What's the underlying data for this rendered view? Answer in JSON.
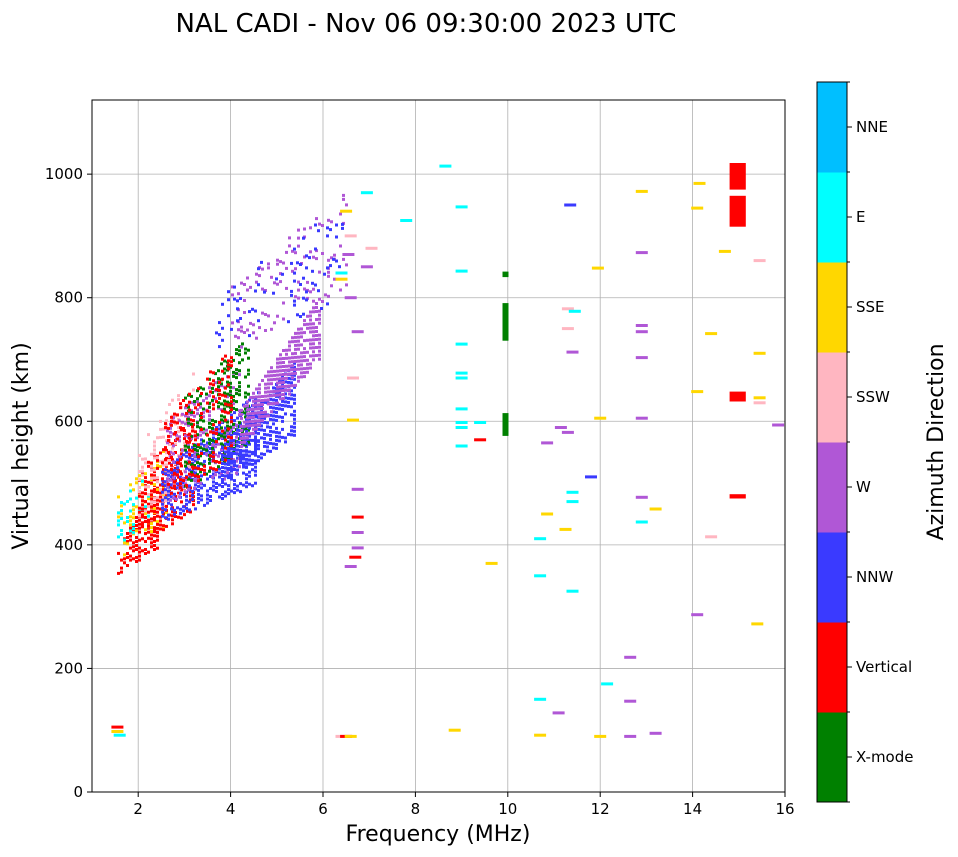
{
  "chart_data": {
    "type": "scatter",
    "title": "NAL CADI - Nov 06 09:30:00 2023 UTC",
    "xlabel": "Frequency (MHz)",
    "ylabel": "Virtual height (km)",
    "xlim": [
      1,
      16
    ],
    "ylim": [
      0,
      1120
    ],
    "xticks": [
      2,
      4,
      6,
      8,
      10,
      12,
      14,
      16
    ],
    "yticks": [
      0,
      200,
      400,
      600,
      800,
      1000
    ],
    "grid": true,
    "colorbar": {
      "label": "Azimuth Direction",
      "categories": [
        {
          "name": "X-mode",
          "color": "#008000"
        },
        {
          "name": "Vertical",
          "color": "#ff0000"
        },
        {
          "name": "NNW",
          "color": "#3a3aff"
        },
        {
          "name": "W",
          "color": "#b057d6"
        },
        {
          "name": "SSW",
          "color": "#ffb6c1"
        },
        {
          "name": "SSE",
          "color": "#ffd700"
        },
        {
          "name": "E",
          "color": "#00ffff"
        },
        {
          "name": "NNE",
          "color": "#00bfff"
        }
      ]
    },
    "trace_bands": [
      {
        "direction": "Vertical",
        "f_start": 1.55,
        "f_end": 2.4,
        "h_low_start": 355,
        "h_low_end": 395,
        "h_high_start": 395,
        "h_high_end": 510,
        "density": 0.6
      },
      {
        "direction": "SSE",
        "f_start": 1.55,
        "f_end": 2.6,
        "h_low_start": 380,
        "h_low_end": 430,
        "h_high_start": 480,
        "h_high_end": 560,
        "density": 0.25
      },
      {
        "direction": "E",
        "f_start": 1.55,
        "f_end": 2.2,
        "h_low_start": 395,
        "h_low_end": 440,
        "h_high_start": 480,
        "h_high_end": 520,
        "density": 0.25
      },
      {
        "direction": "Vertical",
        "f_start": 2.0,
        "f_end": 3.2,
        "h_low_start": 400,
        "h_low_end": 460,
        "h_high_start": 520,
        "h_high_end": 620,
        "density": 0.45
      },
      {
        "direction": "SSW",
        "f_start": 2.0,
        "f_end": 3.2,
        "h_low_start": 440,
        "h_low_end": 500,
        "h_high_start": 560,
        "h_high_end": 690,
        "density": 0.25
      },
      {
        "direction": "NNW",
        "f_start": 2.5,
        "f_end": 4.6,
        "h_low_start": 440,
        "h_low_end": 500,
        "h_high_start": 520,
        "h_high_end": 650,
        "density": 0.55
      },
      {
        "direction": "W",
        "f_start": 2.6,
        "f_end": 4.2,
        "h_low_start": 470,
        "h_low_end": 520,
        "h_high_start": 600,
        "h_high_end": 700,
        "density": 0.3
      },
      {
        "direction": "X-mode",
        "f_start": 3.0,
        "f_end": 4.4,
        "h_low_start": 490,
        "h_low_end": 560,
        "h_high_start": 640,
        "h_high_end": 740,
        "density": 0.35
      },
      {
        "direction": "Vertical",
        "f_start": 2.5,
        "f_end": 4.0,
        "h_low_start": 470,
        "h_low_end": 540,
        "h_high_start": 600,
        "h_high_end": 720,
        "density": 0.25
      },
      {
        "direction": "NNW",
        "f_start": 3.8,
        "f_end": 5.4,
        "h_low_start": 500,
        "h_low_end": 580,
        "h_high_start": 560,
        "h_high_end": 700,
        "density": 0.7
      },
      {
        "direction": "W",
        "f_start": 4.2,
        "f_end": 5.9,
        "h_low_start": 560,
        "h_low_end": 700,
        "h_high_start": 620,
        "h_high_end": 800,
        "density": 0.75
      },
      {
        "direction": "W",
        "f_start": 4.0,
        "f_end": 6.5,
        "h_low_start": 700,
        "h_low_end": 820,
        "h_high_start": 820,
        "h_high_end": 980,
        "density": 0.12
      },
      {
        "direction": "NNW",
        "f_start": 3.6,
        "f_end": 6.4,
        "h_low_start": 720,
        "h_low_end": 790,
        "h_high_start": 800,
        "h_high_end": 960,
        "density": 0.08
      }
    ],
    "isolated_points": [
      {
        "f": 1.55,
        "h": 105,
        "direction": "Vertical"
      },
      {
        "f": 1.55,
        "h": 98,
        "direction": "SSE"
      },
      {
        "f": 1.6,
        "h": 92,
        "direction": "E"
      },
      {
        "f": 6.4,
        "h": 90,
        "direction": "SSW"
      },
      {
        "f": 6.5,
        "h": 90,
        "direction": "Vertical"
      },
      {
        "f": 6.6,
        "h": 90,
        "direction": "SSE"
      },
      {
        "f": 6.6,
        "h": 365,
        "direction": "W"
      },
      {
        "f": 6.7,
        "h": 380,
        "direction": "Vertical"
      },
      {
        "f": 6.75,
        "h": 395,
        "direction": "W"
      },
      {
        "f": 6.75,
        "h": 420,
        "direction": "W"
      },
      {
        "f": 6.75,
        "h": 445,
        "direction": "Vertical"
      },
      {
        "f": 6.75,
        "h": 490,
        "direction": "W"
      },
      {
        "f": 6.65,
        "h": 602,
        "direction": "SSE"
      },
      {
        "f": 6.65,
        "h": 670,
        "direction": "SSW"
      },
      {
        "f": 6.75,
        "h": 745,
        "direction": "W"
      },
      {
        "f": 6.6,
        "h": 800,
        "direction": "W"
      },
      {
        "f": 6.4,
        "h": 830,
        "direction": "SSE"
      },
      {
        "f": 6.4,
        "h": 840,
        "direction": "E"
      },
      {
        "f": 6.55,
        "h": 870,
        "direction": "W"
      },
      {
        "f": 6.6,
        "h": 900,
        "direction": "SSW"
      },
      {
        "f": 6.5,
        "h": 940,
        "direction": "SSE"
      },
      {
        "f": 6.95,
        "h": 970,
        "direction": "E"
      },
      {
        "f": 6.95,
        "h": 850,
        "direction": "W"
      },
      {
        "f": 7.05,
        "h": 880,
        "direction": "SSW"
      },
      {
        "f": 7.8,
        "h": 925,
        "direction": "E"
      },
      {
        "f": 8.65,
        "h": 1013,
        "direction": "E"
      },
      {
        "f": 8.85,
        "h": 100,
        "direction": "SSE"
      },
      {
        "f": 9.0,
        "h": 947,
        "direction": "E"
      },
      {
        "f": 9.0,
        "h": 843,
        "direction": "E"
      },
      {
        "f": 9.0,
        "h": 725,
        "direction": "E"
      },
      {
        "f": 9.0,
        "h": 678,
        "direction": "E"
      },
      {
        "f": 9.0,
        "h": 670,
        "direction": "E"
      },
      {
        "f": 9.0,
        "h": 620,
        "direction": "E"
      },
      {
        "f": 9.0,
        "h": 598,
        "direction": "E"
      },
      {
        "f": 9.0,
        "h": 590,
        "direction": "E"
      },
      {
        "f": 9.0,
        "h": 560,
        "direction": "E"
      },
      {
        "f": 9.4,
        "h": 598,
        "direction": "E"
      },
      {
        "f": 9.4,
        "h": 570,
        "direction": "Vertical"
      },
      {
        "f": 9.65,
        "h": 370,
        "direction": "SSE"
      },
      {
        "f": 10.7,
        "h": 92,
        "direction": "SSE"
      },
      {
        "f": 10.7,
        "h": 150,
        "direction": "E"
      },
      {
        "f": 10.7,
        "h": 350,
        "direction": "E"
      },
      {
        "f": 10.7,
        "h": 410,
        "direction": "E"
      },
      {
        "f": 10.85,
        "h": 450,
        "direction": "SSE"
      },
      {
        "f": 10.85,
        "h": 565,
        "direction": "W"
      },
      {
        "f": 11.1,
        "h": 128,
        "direction": "W"
      },
      {
        "f": 11.25,
        "h": 425,
        "direction": "SSE"
      },
      {
        "f": 11.4,
        "h": 470,
        "direction": "E"
      },
      {
        "f": 11.4,
        "h": 485,
        "direction": "E"
      },
      {
        "f": 11.4,
        "h": 325,
        "direction": "E"
      },
      {
        "f": 11.3,
        "h": 582,
        "direction": "W"
      },
      {
        "f": 11.15,
        "h": 590,
        "direction": "W"
      },
      {
        "f": 11.4,
        "h": 712,
        "direction": "W"
      },
      {
        "f": 11.3,
        "h": 750,
        "direction": "SSW"
      },
      {
        "f": 11.3,
        "h": 782,
        "direction": "SSW"
      },
      {
        "f": 11.45,
        "h": 778,
        "direction": "E"
      },
      {
        "f": 11.35,
        "h": 950,
        "direction": "NNW"
      },
      {
        "f": 11.8,
        "h": 510,
        "direction": "NNW"
      },
      {
        "f": 11.95,
        "h": 848,
        "direction": "SSE"
      },
      {
        "f": 12.0,
        "h": 90,
        "direction": "SSE"
      },
      {
        "f": 12.15,
        "h": 175,
        "direction": "E"
      },
      {
        "f": 12.0,
        "h": 605,
        "direction": "SSE"
      },
      {
        "f": 12.65,
        "h": 90,
        "direction": "W"
      },
      {
        "f": 12.65,
        "h": 147,
        "direction": "W"
      },
      {
        "f": 12.65,
        "h": 218,
        "direction": "W"
      },
      {
        "f": 12.9,
        "h": 437,
        "direction": "E"
      },
      {
        "f": 12.9,
        "h": 477,
        "direction": "W"
      },
      {
        "f": 12.9,
        "h": 605,
        "direction": "W"
      },
      {
        "f": 12.9,
        "h": 703,
        "direction": "W"
      },
      {
        "f": 12.9,
        "h": 745,
        "direction": "W"
      },
      {
        "f": 12.9,
        "h": 755,
        "direction": "W"
      },
      {
        "f": 12.9,
        "h": 873,
        "direction": "W"
      },
      {
        "f": 12.9,
        "h": 972,
        "direction": "SSE"
      },
      {
        "f": 13.2,
        "h": 95,
        "direction": "W"
      },
      {
        "f": 13.2,
        "h": 458,
        "direction": "SSE"
      },
      {
        "f": 14.1,
        "h": 287,
        "direction": "W"
      },
      {
        "f": 14.1,
        "h": 648,
        "direction": "SSE"
      },
      {
        "f": 14.1,
        "h": 945,
        "direction": "SSE"
      },
      {
        "f": 14.15,
        "h": 985,
        "direction": "SSE"
      },
      {
        "f": 14.4,
        "h": 413,
        "direction": "SSW"
      },
      {
        "f": 14.4,
        "h": 742,
        "direction": "SSE"
      },
      {
        "f": 14.7,
        "h": 875,
        "direction": "SSE"
      },
      {
        "f": 15.4,
        "h": 272,
        "direction": "SSE"
      },
      {
        "f": 15.45,
        "h": 630,
        "direction": "SSW"
      },
      {
        "f": 15.45,
        "h": 638,
        "direction": "SSE"
      },
      {
        "f": 15.45,
        "h": 710,
        "direction": "SSE"
      },
      {
        "f": 15.45,
        "h": 860,
        "direction": "SSW"
      },
      {
        "f": 15.85,
        "h": 594,
        "direction": "W"
      }
    ],
    "vertical_columns": [
      {
        "f": 9.95,
        "h_from": 578,
        "h_to": 610,
        "direction": "X-mode"
      },
      {
        "f": 9.95,
        "h_from": 732,
        "h_to": 788,
        "direction": "X-mode"
      },
      {
        "f": 9.95,
        "h_from": 835,
        "h_to": 840,
        "direction": "X-mode"
      }
    ],
    "blocks": [
      {
        "f_from": 14.8,
        "f_to": 15.15,
        "h_from": 475,
        "h_to": 482,
        "direction": "Vertical"
      },
      {
        "f_from": 14.8,
        "f_to": 15.15,
        "h_from": 632,
        "h_to": 648,
        "direction": "Vertical"
      },
      {
        "f_from": 14.8,
        "f_to": 15.15,
        "h_from": 915,
        "h_to": 965,
        "direction": "Vertical"
      },
      {
        "f_from": 14.8,
        "f_to": 15.15,
        "h_from": 975,
        "h_to": 1018,
        "direction": "Vertical"
      }
    ]
  }
}
